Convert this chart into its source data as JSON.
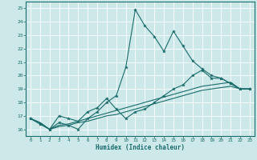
{
  "xlabel": "Humidex (Indice chaleur)",
  "xlim": [
    -0.5,
    23.5
  ],
  "ylim": [
    15.5,
    25.5
  ],
  "xticks": [
    0,
    1,
    2,
    3,
    4,
    5,
    6,
    7,
    8,
    9,
    10,
    11,
    12,
    13,
    14,
    15,
    16,
    17,
    18,
    19,
    20,
    21,
    22,
    23
  ],
  "yticks": [
    16,
    17,
    18,
    19,
    20,
    21,
    22,
    23,
    24,
    25
  ],
  "bg_color": "#cce8e8",
  "line_color": "#1a6b6b",
  "grid_color": "#b0d8d8",
  "series0": [
    16.8,
    16.4,
    16.0,
    16.5,
    16.3,
    16.0,
    16.8,
    17.3,
    18.0,
    18.5,
    20.6,
    24.9,
    23.7,
    22.9,
    21.8,
    23.3,
    22.2,
    21.1,
    20.5,
    20.0,
    19.8,
    19.4,
    19.0,
    19.0
  ],
  "series1": [
    16.8,
    16.4,
    16.0,
    17.0,
    16.8,
    16.6,
    17.3,
    17.6,
    18.3,
    17.5,
    16.8,
    17.3,
    17.5,
    18.0,
    18.5,
    19.0,
    19.3,
    20.0,
    20.4,
    19.8,
    19.8,
    19.4,
    19.0,
    19.0
  ],
  "series2": [
    16.8,
    16.5,
    16.0,
    16.3,
    16.4,
    16.6,
    16.8,
    17.0,
    17.2,
    17.4,
    17.6,
    17.8,
    18.0,
    18.2,
    18.4,
    18.6,
    18.8,
    19.0,
    19.2,
    19.3,
    19.4,
    19.5,
    19.0,
    19.0
  ],
  "series3": [
    16.8,
    16.5,
    16.0,
    16.2,
    16.3,
    16.5,
    16.6,
    16.8,
    17.0,
    17.1,
    17.3,
    17.5,
    17.7,
    17.9,
    18.1,
    18.3,
    18.5,
    18.7,
    18.9,
    19.0,
    19.1,
    19.2,
    19.0,
    19.0
  ]
}
